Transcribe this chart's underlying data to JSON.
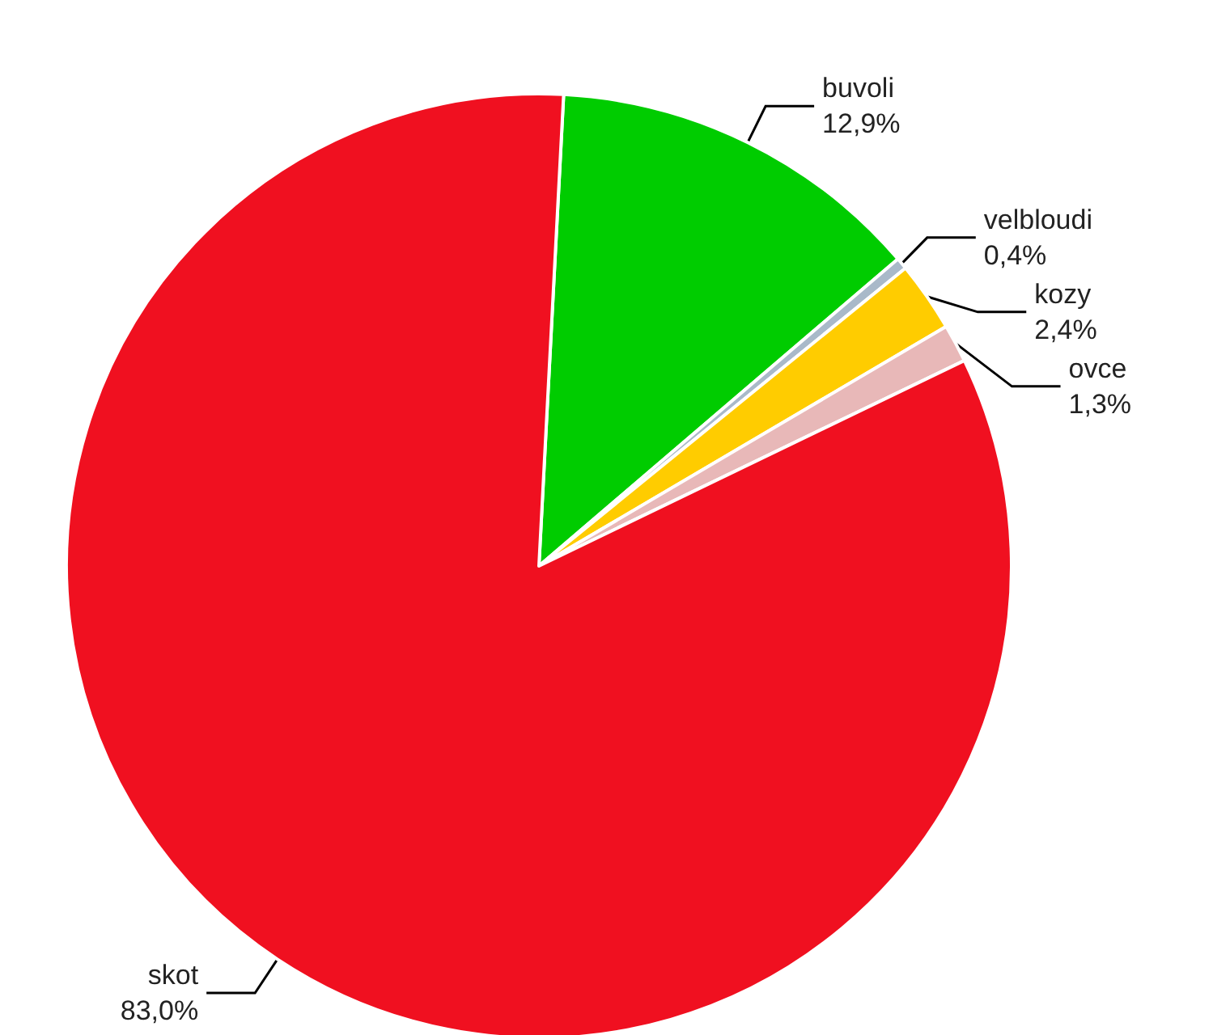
{
  "chart_data": {
    "type": "pie",
    "categories": [
      "buvoli",
      "velbloudi",
      "kozy",
      "ovce",
      "skot"
    ],
    "values": [
      12.9,
      0.4,
      2.4,
      1.3,
      83.0
    ],
    "colors": [
      "#00cc00",
      "#a9b9c9",
      "#ffcc00",
      "#e8b8b8",
      "#f01020"
    ],
    "value_labels": [
      "12,9%",
      "0,4%",
      "2,4%",
      "1,3%",
      "83,0%"
    ],
    "legend": false
  }
}
